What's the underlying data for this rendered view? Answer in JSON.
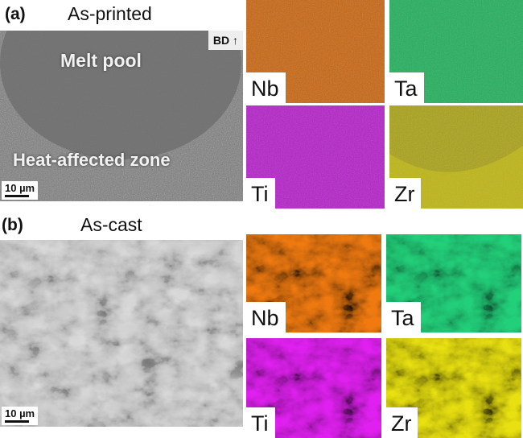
{
  "panel_a": {
    "label": "(a)",
    "title": "As-printed",
    "micrograph": {
      "melt_pool": "Melt pool",
      "haz": "Heat-affected zone",
      "scale": "10 µm",
      "build_direction": "BD"
    },
    "maps": [
      {
        "element": "Nb",
        "color": "#c8620a"
      },
      {
        "element": "Ta",
        "color": "#1fae5a"
      },
      {
        "element": "Ti",
        "color": "#b31ec8"
      },
      {
        "element": "Zr",
        "color": "#a8a010"
      }
    ]
  },
  "panel_b": {
    "label": "(b)",
    "title": "As-cast",
    "micrograph": {
      "scale": "10 µm"
    },
    "maps": [
      {
        "element": "Nb",
        "color": "#f07a10"
      },
      {
        "element": "Ta",
        "color": "#22d07a"
      },
      {
        "element": "Ti",
        "color": "#e020f0"
      },
      {
        "element": "Zr",
        "color": "#e8e010"
      }
    ]
  }
}
